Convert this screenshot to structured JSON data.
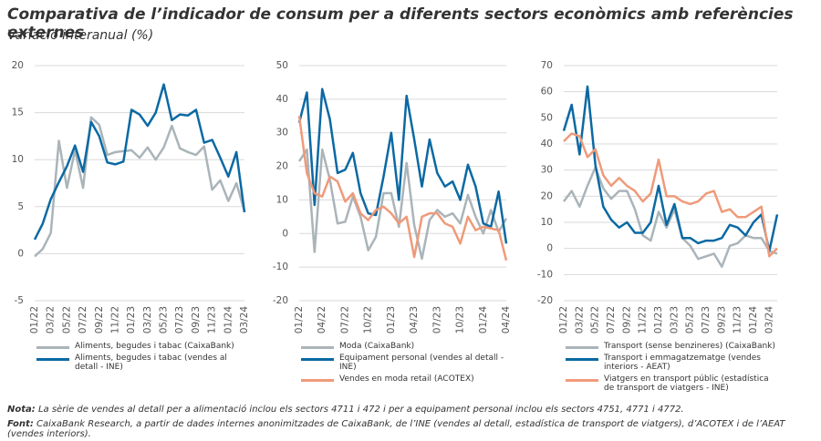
{
  "title": "Comparativa de l’indicador de consum per a diferents sectors econòmics amb referències externes",
  "subtitle": "Variació interanual (%)",
  "notes": [
    {
      "label": "Nota:",
      "text": "La sèrie de vendes al detall per a alimentació inclou els sectors 4711 i 472 i per a equipament personal inclou els sectors 4751, 4771 i 4772."
    },
    {
      "label": "Font:",
      "text": "CaixaBank Research, a partir de dades internes anonimitzades de CaixaBank, de l’INE (vendes al detall, estadística de transport de viatgers), d’ACOTEX i de l’AEAT (vendes interiors)."
    }
  ],
  "chart_data": [
    {
      "type": "line",
      "grid": true,
      "categories": [
        "01/22",
        null,
        "03/22",
        null,
        "05/22",
        null,
        "07/22",
        null,
        "09/22",
        null,
        "11/22",
        null,
        "01/23",
        null,
        "03/23",
        null,
        "05/23",
        null,
        "07/23",
        null,
        "09/23",
        null,
        "11/23",
        null,
        "01/24",
        null,
        "03/24"
      ],
      "ylim": [
        -5,
        20
      ],
      "yticks": [
        -5,
        0,
        5,
        10,
        15,
        20
      ],
      "series": [
        {
          "name": "Aliments, begudes i tabac (CaixaBank)",
          "color": "#aab4b9",
          "values": [
            -0.3,
            0.5,
            2.2,
            12,
            7,
            11,
            7,
            14.5,
            13.7,
            10.5,
            10.8,
            10.9,
            11,
            10.2,
            11.3,
            10,
            11.3,
            13.6,
            11.2,
            10.8,
            10.5,
            11.4,
            6.8,
            7.8,
            5.6,
            7.5,
            4.5
          ]
        },
        {
          "name": "Aliments, begudes i tabac (vendes al detall - INE)",
          "color": "#0b69a3",
          "values": [
            1.5,
            3.2,
            5.8,
            7.6,
            9.3,
            11.5,
            8.7,
            14,
            12.5,
            9.7,
            9.5,
            9.8,
            15.3,
            14.8,
            13.6,
            15,
            18,
            14.2,
            14.8,
            14.7,
            15.3,
            11.8,
            12.1,
            10.2,
            8.2,
            10.8,
            4.4
          ]
        }
      ]
    },
    {
      "type": "line",
      "grid": true,
      "categories": [
        "01/22",
        null,
        null,
        "04/22",
        null,
        null,
        "07/22",
        null,
        null,
        "10/22",
        null,
        null,
        "01/23",
        null,
        null,
        "04/23",
        null,
        null,
        "07/23",
        null,
        null,
        "10/23",
        null,
        null,
        "01/24",
        null,
        null,
        "04/24"
      ],
      "ylim": [
        -20,
        50
      ],
      "yticks": [
        -20,
        -10,
        0,
        10,
        20,
        30,
        40,
        50
      ],
      "series": [
        {
          "name": "Moda (CaixaBank)",
          "color": "#aab4b9",
          "values": [
            21.5,
            25,
            -5.5,
            25,
            16,
            3,
            3.5,
            11,
            5,
            -5,
            -1,
            12,
            12,
            2,
            21,
            2.5,
            -7.5,
            4,
            7,
            5,
            6,
            3,
            11.5,
            5,
            0,
            7,
            0.5,
            4.5
          ]
        },
        {
          "name": "Equipament personal (vendes al detall - INE)",
          "color": "#0b69a3",
          "values": [
            33,
            42,
            8.5,
            43,
            34,
            18,
            19,
            24,
            12,
            6,
            5.5,
            17,
            30,
            10,
            41,
            28,
            14,
            28,
            18,
            14,
            15.5,
            10,
            20.5,
            14,
            3,
            2,
            12.5,
            -3
          ]
        },
        {
          "name": "Vendes en moda retail (ACOTEX)",
          "color": "#ef9a7a",
          "values": [
            35,
            18,
            12,
            11,
            17,
            15.5,
            9.5,
            12,
            6,
            4,
            7,
            8,
            6,
            3,
            5,
            -7,
            5,
            6,
            6,
            3,
            2,
            -3,
            5,
            1,
            2,
            1.5,
            1,
            -8
          ]
        }
      ]
    },
    {
      "type": "line",
      "grid": true,
      "categories": [
        "01/22",
        null,
        "03/22",
        null,
        "05/22",
        null,
        "07/22",
        null,
        "09/22",
        null,
        "11/22",
        null,
        "01/23",
        null,
        "03/23",
        null,
        "05/23",
        null,
        "07/23",
        null,
        "09/23",
        null,
        "11/23",
        null,
        "01/24",
        null,
        "03/24",
        null
      ],
      "ylim": [
        -20,
        70
      ],
      "yticks": [
        -20,
        -10,
        0,
        10,
        20,
        30,
        40,
        50,
        60,
        70
      ],
      "series": [
        {
          "name": "Transport (sense benzineres) (CaixaBank)",
          "color": "#aab4b9",
          "values": [
            18,
            22,
            16,
            24,
            31,
            23,
            19,
            22,
            22,
            15,
            5,
            3,
            14,
            8,
            15,
            4,
            1,
            -4,
            -3,
            -2,
            -7,
            1,
            2,
            5,
            4,
            4,
            -1,
            -2
          ]
        },
        {
          "name": "Transport i emmagatzematge (vendes interiors - AEAT)",
          "color": "#0b69a3",
          "values": [
            45,
            55,
            36,
            62,
            32,
            16,
            11,
            8,
            10,
            6,
            6,
            10,
            24,
            9,
            17,
            4,
            4,
            2,
            3,
            3,
            4,
            9,
            8,
            5,
            10,
            13,
            -1,
            13
          ]
        },
        {
          "name": "Viatgers en transport públic (estadística de transport de viatgers - INE)",
          "color": "#ef9a7a",
          "values": [
            41,
            44,
            43,
            35,
            38,
            28,
            24,
            27,
            24,
            22,
            18,
            21,
            34,
            20,
            20,
            18,
            17,
            18,
            21,
            22,
            14,
            15,
            12,
            12,
            14,
            16,
            -3,
            0
          ]
        }
      ]
    }
  ]
}
